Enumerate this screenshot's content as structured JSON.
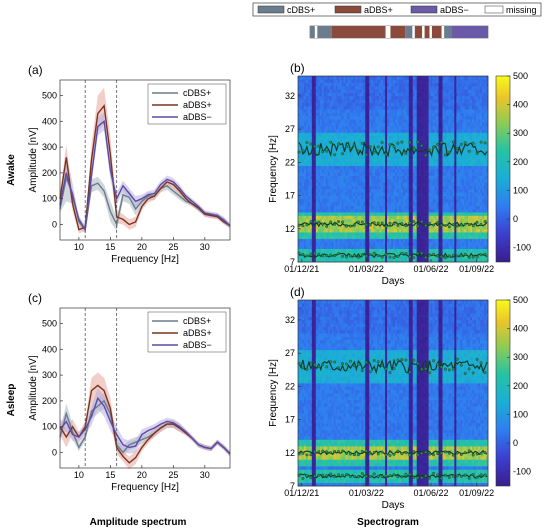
{
  "figure_legend": {
    "items": [
      {
        "label": "cDBS+",
        "color": "#6b7d8c"
      },
      {
        "label": "aDBS+",
        "color": "#8a4a3c"
      },
      {
        "label": "aDBS−",
        "color": "#6a5aa8"
      },
      {
        "label": "missing",
        "color": "#ffffff"
      }
    ],
    "timeline": [
      {
        "mode": "cDBS+",
        "len": 2
      },
      {
        "mode": "missing",
        "len": 1
      },
      {
        "mode": "cDBS+",
        "len": 6
      },
      {
        "mode": "aDBS+",
        "len": 22
      },
      {
        "mode": "missing",
        "len": 2
      },
      {
        "mode": "aDBS+",
        "len": 6
      },
      {
        "mode": "cDBS+",
        "len": 3
      },
      {
        "mode": "missing",
        "len": 1
      },
      {
        "mode": "aDBS+",
        "len": 3
      },
      {
        "mode": "missing",
        "len": 1
      },
      {
        "mode": "aDBS+",
        "len": 2
      },
      {
        "mode": "missing",
        "len": 1
      },
      {
        "mode": "aDBS+",
        "len": 4
      },
      {
        "mode": "missing",
        "len": 1
      },
      {
        "mode": "cDBS+",
        "len": 3
      },
      {
        "mode": "aDBS−",
        "len": 15
      }
    ]
  },
  "row_labels": {
    "awake": "Awake",
    "asleep": "Asleep"
  },
  "column_labels": {
    "left": "Amplitude spectrum",
    "right": "Spectrogram"
  },
  "colors": {
    "cdbs": "#6b7d8c",
    "cdbs_band": "#aab6bf",
    "adbsp": "#7a3320",
    "adbsp_band": "#e7a59c",
    "adbsm": "#5b4aa6",
    "adbsm_band": "#b8aee0"
  },
  "chart_data": [
    {
      "type": "line",
      "panel": "(a)",
      "xlabel": "Frequency [Hz]",
      "ylabel": "Amplitude [nV]",
      "xlim": [
        7,
        34
      ],
      "ylim": [
        -60,
        560
      ],
      "xticks": [
        10,
        15,
        20,
        25,
        30
      ],
      "yticks": [
        0,
        100,
        200,
        300,
        400,
        500
      ],
      "vlines": [
        11,
        16
      ],
      "legend_position": "top-right",
      "x": [
        7,
        8,
        9,
        10,
        11,
        12,
        13,
        14,
        15,
        16,
        17,
        18,
        19,
        20,
        21,
        22,
        23,
        24,
        25,
        26,
        27,
        28,
        29,
        30,
        31,
        32,
        33,
        34
      ],
      "series": [
        {
          "name": "cDBS+",
          "color_key": "cdbs",
          "values": [
            60,
            180,
            120,
            10,
            -20,
            150,
            160,
            130,
            50,
            0,
            115,
            105,
            60,
            90,
            110,
            110,
            140,
            150,
            130,
            110,
            90,
            80,
            60,
            40,
            35,
            35,
            20,
            -5
          ],
          "band": [
            15,
            90,
            40,
            15,
            15,
            25,
            25,
            25,
            40,
            25,
            25,
            25,
            25,
            15,
            15,
            15,
            15,
            15,
            15,
            15,
            10,
            10,
            10,
            10,
            10,
            10,
            10,
            10
          ]
        },
        {
          "name": "aDBS+",
          "color_key": "adbsp",
          "values": [
            100,
            260,
            80,
            -20,
            -10,
            250,
            430,
            460,
            270,
            30,
            20,
            0,
            10,
            70,
            100,
            110,
            140,
            165,
            155,
            130,
            100,
            80,
            65,
            40,
            35,
            30,
            10,
            -5
          ],
          "band": [
            20,
            50,
            30,
            15,
            15,
            60,
            70,
            70,
            70,
            25,
            20,
            20,
            20,
            15,
            15,
            15,
            15,
            15,
            15,
            15,
            10,
            10,
            10,
            10,
            10,
            10,
            10,
            10
          ]
        },
        {
          "name": "aDBS−",
          "color_key": "adbsm",
          "values": [
            75,
            200,
            110,
            20,
            -20,
            190,
            380,
            400,
            210,
            100,
            150,
            120,
            90,
            100,
            115,
            120,
            155,
            175,
            165,
            140,
            110,
            90,
            70,
            45,
            40,
            35,
            15,
            -5
          ],
          "band": [
            15,
            30,
            20,
            15,
            15,
            35,
            35,
            35,
            35,
            25,
            20,
            20,
            20,
            15,
            15,
            15,
            15,
            15,
            15,
            15,
            10,
            10,
            10,
            10,
            10,
            10,
            10,
            10
          ]
        }
      ]
    },
    {
      "type": "line",
      "panel": "(c)",
      "xlabel": "Frequency [Hz]",
      "ylabel": "Amplitude [nV]",
      "xlim": [
        7,
        34
      ],
      "ylim": [
        -60,
        560
      ],
      "xticks": [
        10,
        15,
        20,
        25,
        30
      ],
      "yticks": [
        0,
        100,
        200,
        300,
        400,
        500
      ],
      "vlines": [
        11,
        16
      ],
      "legend_position": "top-right",
      "x": [
        7,
        8,
        9,
        10,
        11,
        12,
        13,
        14,
        15,
        16,
        17,
        18,
        19,
        20,
        21,
        22,
        23,
        24,
        25,
        26,
        27,
        28,
        29,
        30,
        31,
        32,
        33,
        34
      ],
      "series": [
        {
          "name": "cDBS+",
          "color_key": "cdbs",
          "values": [
            60,
            150,
            80,
            20,
            60,
            160,
            180,
            200,
            150,
            30,
            0,
            30,
            40,
            50,
            60,
            75,
            95,
            110,
            110,
            95,
            80,
            55,
            30,
            20,
            15,
            40,
            20,
            -5
          ],
          "band": [
            20,
            40,
            30,
            15,
            15,
            30,
            30,
            30,
            30,
            25,
            20,
            20,
            20,
            15,
            15,
            15,
            15,
            15,
            15,
            15,
            10,
            10,
            10,
            10,
            10,
            10,
            10,
            10
          ]
        },
        {
          "name": "aDBS+",
          "color_key": "adbsp",
          "values": [
            100,
            60,
            100,
            60,
            100,
            240,
            260,
            240,
            170,
            20,
            -15,
            -40,
            -20,
            20,
            50,
            75,
            95,
            110,
            110,
            95,
            75,
            55,
            30,
            20,
            15,
            40,
            20,
            -5
          ],
          "band": [
            30,
            40,
            30,
            20,
            20,
            50,
            50,
            50,
            40,
            25,
            20,
            25,
            25,
            15,
            15,
            15,
            15,
            15,
            15,
            15,
            10,
            10,
            10,
            10,
            10,
            10,
            10,
            10
          ]
        },
        {
          "name": "aDBS−",
          "color_key": "adbsm",
          "values": [
            90,
            120,
            70,
            60,
            90,
            140,
            210,
            180,
            120,
            70,
            30,
            20,
            25,
            70,
            85,
            95,
            110,
            120,
            115,
            100,
            80,
            55,
            30,
            20,
            15,
            40,
            20,
            -5
          ],
          "band": [
            20,
            40,
            25,
            20,
            20,
            35,
            40,
            40,
            35,
            30,
            25,
            25,
            25,
            20,
            15,
            15,
            15,
            15,
            15,
            15,
            10,
            10,
            10,
            10,
            10,
            10,
            10,
            10
          ]
        }
      ]
    },
    {
      "type": "heatmap",
      "panel": "(b)",
      "xlabel": "Days",
      "ylabel": "Frequency [Hz]",
      "ylim": [
        7,
        35
      ],
      "xticklabels": [
        "01/12/21",
        "01/03/22",
        "01/06/22",
        "01/09/22"
      ],
      "yticks": [
        7,
        12,
        17,
        22,
        27,
        32
      ],
      "colorbar": {
        "min": -150,
        "max": 500,
        "ticks": [
          -100,
          0,
          100,
          200,
          300,
          400,
          500
        ]
      },
      "peak_bands_hz": [
        8,
        12.7,
        24
      ]
    },
    {
      "type": "heatmap",
      "panel": "(d)",
      "xlabel": "Days",
      "ylabel": "Frequency [Hz]",
      "ylim": [
        7,
        35
      ],
      "xticklabels": [
        "01/12/21",
        "01/03/22",
        "01/06/22",
        "01/09/22"
      ],
      "yticks": [
        7,
        12,
        17,
        22,
        27,
        32
      ],
      "colorbar": {
        "min": -150,
        "max": 500,
        "ticks": [
          -100,
          0,
          100,
          200,
          300,
          400,
          500
        ]
      },
      "peak_bands_hz": [
        8.5,
        12,
        25
      ]
    }
  ]
}
